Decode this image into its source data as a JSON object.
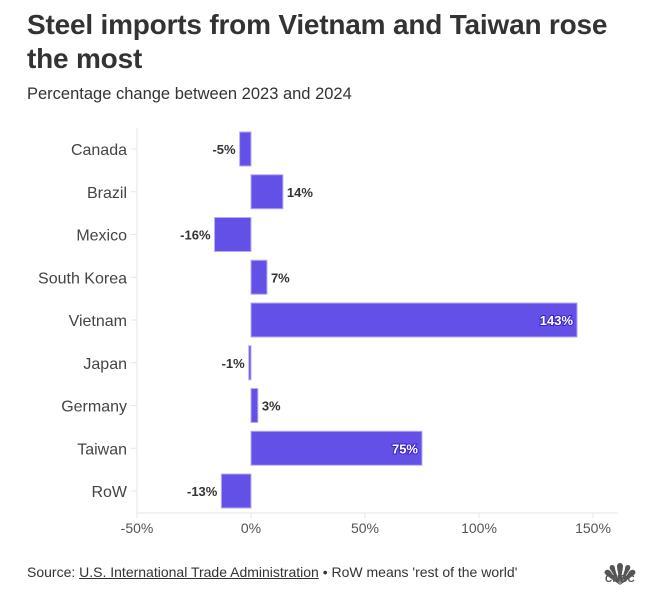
{
  "chart_data": {
    "type": "bar",
    "orientation": "horizontal",
    "title": "Steel imports from Vietnam and Taiwan rose the most",
    "subtitle": "Percentage change between 2023 and 2024",
    "categories": [
      "Canada",
      "Brazil",
      "Mexico",
      "South Korea",
      "Vietnam",
      "Japan",
      "Germany",
      "Taiwan",
      "RoW"
    ],
    "values": [
      -5,
      14,
      -16,
      7,
      143,
      -1,
      3,
      75,
      -13
    ],
    "value_labels": [
      "-5%",
      "14%",
      "-16%",
      "7%",
      "143%",
      "-1%",
      "3%",
      "75%",
      "-13%"
    ],
    "xlabel": "",
    "ylabel": "",
    "xlim": [
      -50,
      160
    ],
    "x_ticks": [
      -50,
      0,
      50,
      100,
      150
    ],
    "x_tick_labels": [
      "-50%",
      "0%",
      "50%",
      "100%",
      "150%"
    ],
    "grid": false,
    "legend": "none",
    "bar_color": "#6350e6"
  },
  "footer": {
    "source_prefix": "Source: ",
    "source_link": "U.S. International Trade Administration",
    "note": " • RoW means 'rest of the world'"
  },
  "logo": {
    "text": "CNBC",
    "icon": "peacock-icon"
  }
}
